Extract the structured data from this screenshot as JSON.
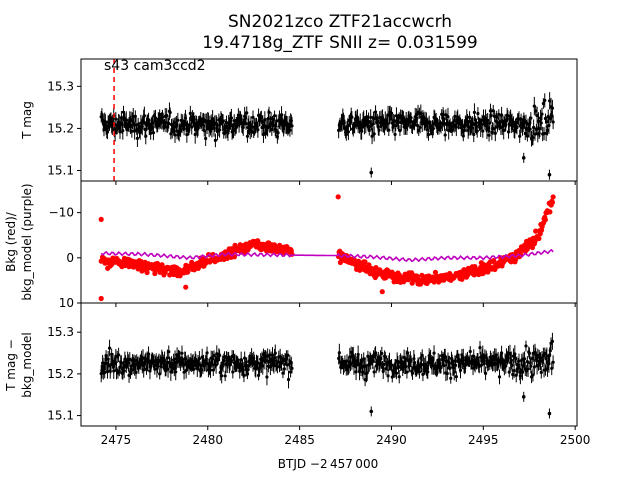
{
  "chart_data": {
    "type": "scatter",
    "title_line1": "SN2021zco  ZTF21accwcrh",
    "title_line2": "19.4718g_ZTF SNII z= 0.031599",
    "xlabel": "BTJD −2 457 000",
    "xlim": [
      2473.1,
      2500.1
    ],
    "xticks": [
      "2475",
      "2480",
      "2485",
      "2490",
      "2495",
      "2500"
    ],
    "gap": [
      2484.6,
      2487.1
    ],
    "panels": [
      {
        "name": "top",
        "ylabel": "T mag",
        "ylim": [
          15.365,
          15.075
        ],
        "yticks": [
          "15.1",
          "15.2",
          "15.3"
        ],
        "annotation": "s43 cam3ccd2",
        "vline_x": 2474.9,
        "series": [
          {
            "name": "T mag",
            "color": "#000000",
            "center": 15.21,
            "spread": 0.045,
            "x_start": 2474.2,
            "x_end": 2498.8
          }
        ]
      },
      {
        "name": "middle",
        "ylabel_line1": "Bkg (red)/",
        "ylabel_line2": "bkg_model (purple)",
        "ylim": [
          -17,
          10
        ],
        "yticks": [
          "10",
          "0",
          "−10"
        ],
        "series": [
          {
            "name": "Bkg",
            "color": "#ff0000",
            "x": [
              2474.2,
              2476.0,
              2478.5,
              2480.5,
              2482.5,
              2484.5,
              2487.0,
              2489.0,
              2491.5,
              2493.5,
              2495.5,
              2497.0,
              2498.0,
              2498.8
            ],
            "y": [
              0.5,
              1.5,
              3.0,
              0.0,
              -3.0,
              -1.5,
              -0.5,
              3.0,
              5.0,
              4.0,
              2.0,
              -1.0,
              -5.0,
              -13.0
            ]
          },
          {
            "name": "bkg_model",
            "color": "#bf00bf",
            "x": [
              2474.2,
              2476.5,
              2479.0,
              2481.0,
              2484.5,
              2487.0,
              2489.0,
              2491.0,
              2493.0,
              2495.0,
              2497.0,
              2498.8
            ],
            "y": [
              -1.0,
              -0.8,
              0.0,
              -0.8,
              -0.6,
              -0.5,
              -0.2,
              0.5,
              0.0,
              0.0,
              -0.5,
              -1.5
            ]
          }
        ]
      },
      {
        "name": "bottom",
        "ylabel_line1": "T mag −",
        "ylabel_line2": "bkg_model",
        "ylim": [
          15.37,
          15.075
        ],
        "yticks": [
          "15.1",
          "15.2",
          "15.3"
        ],
        "series": [
          {
            "name": "T mag - bkg_model",
            "color": "#000000",
            "center": 15.225,
            "spread": 0.045,
            "x_start": 2474.2,
            "x_end": 2498.8
          }
        ]
      }
    ]
  }
}
